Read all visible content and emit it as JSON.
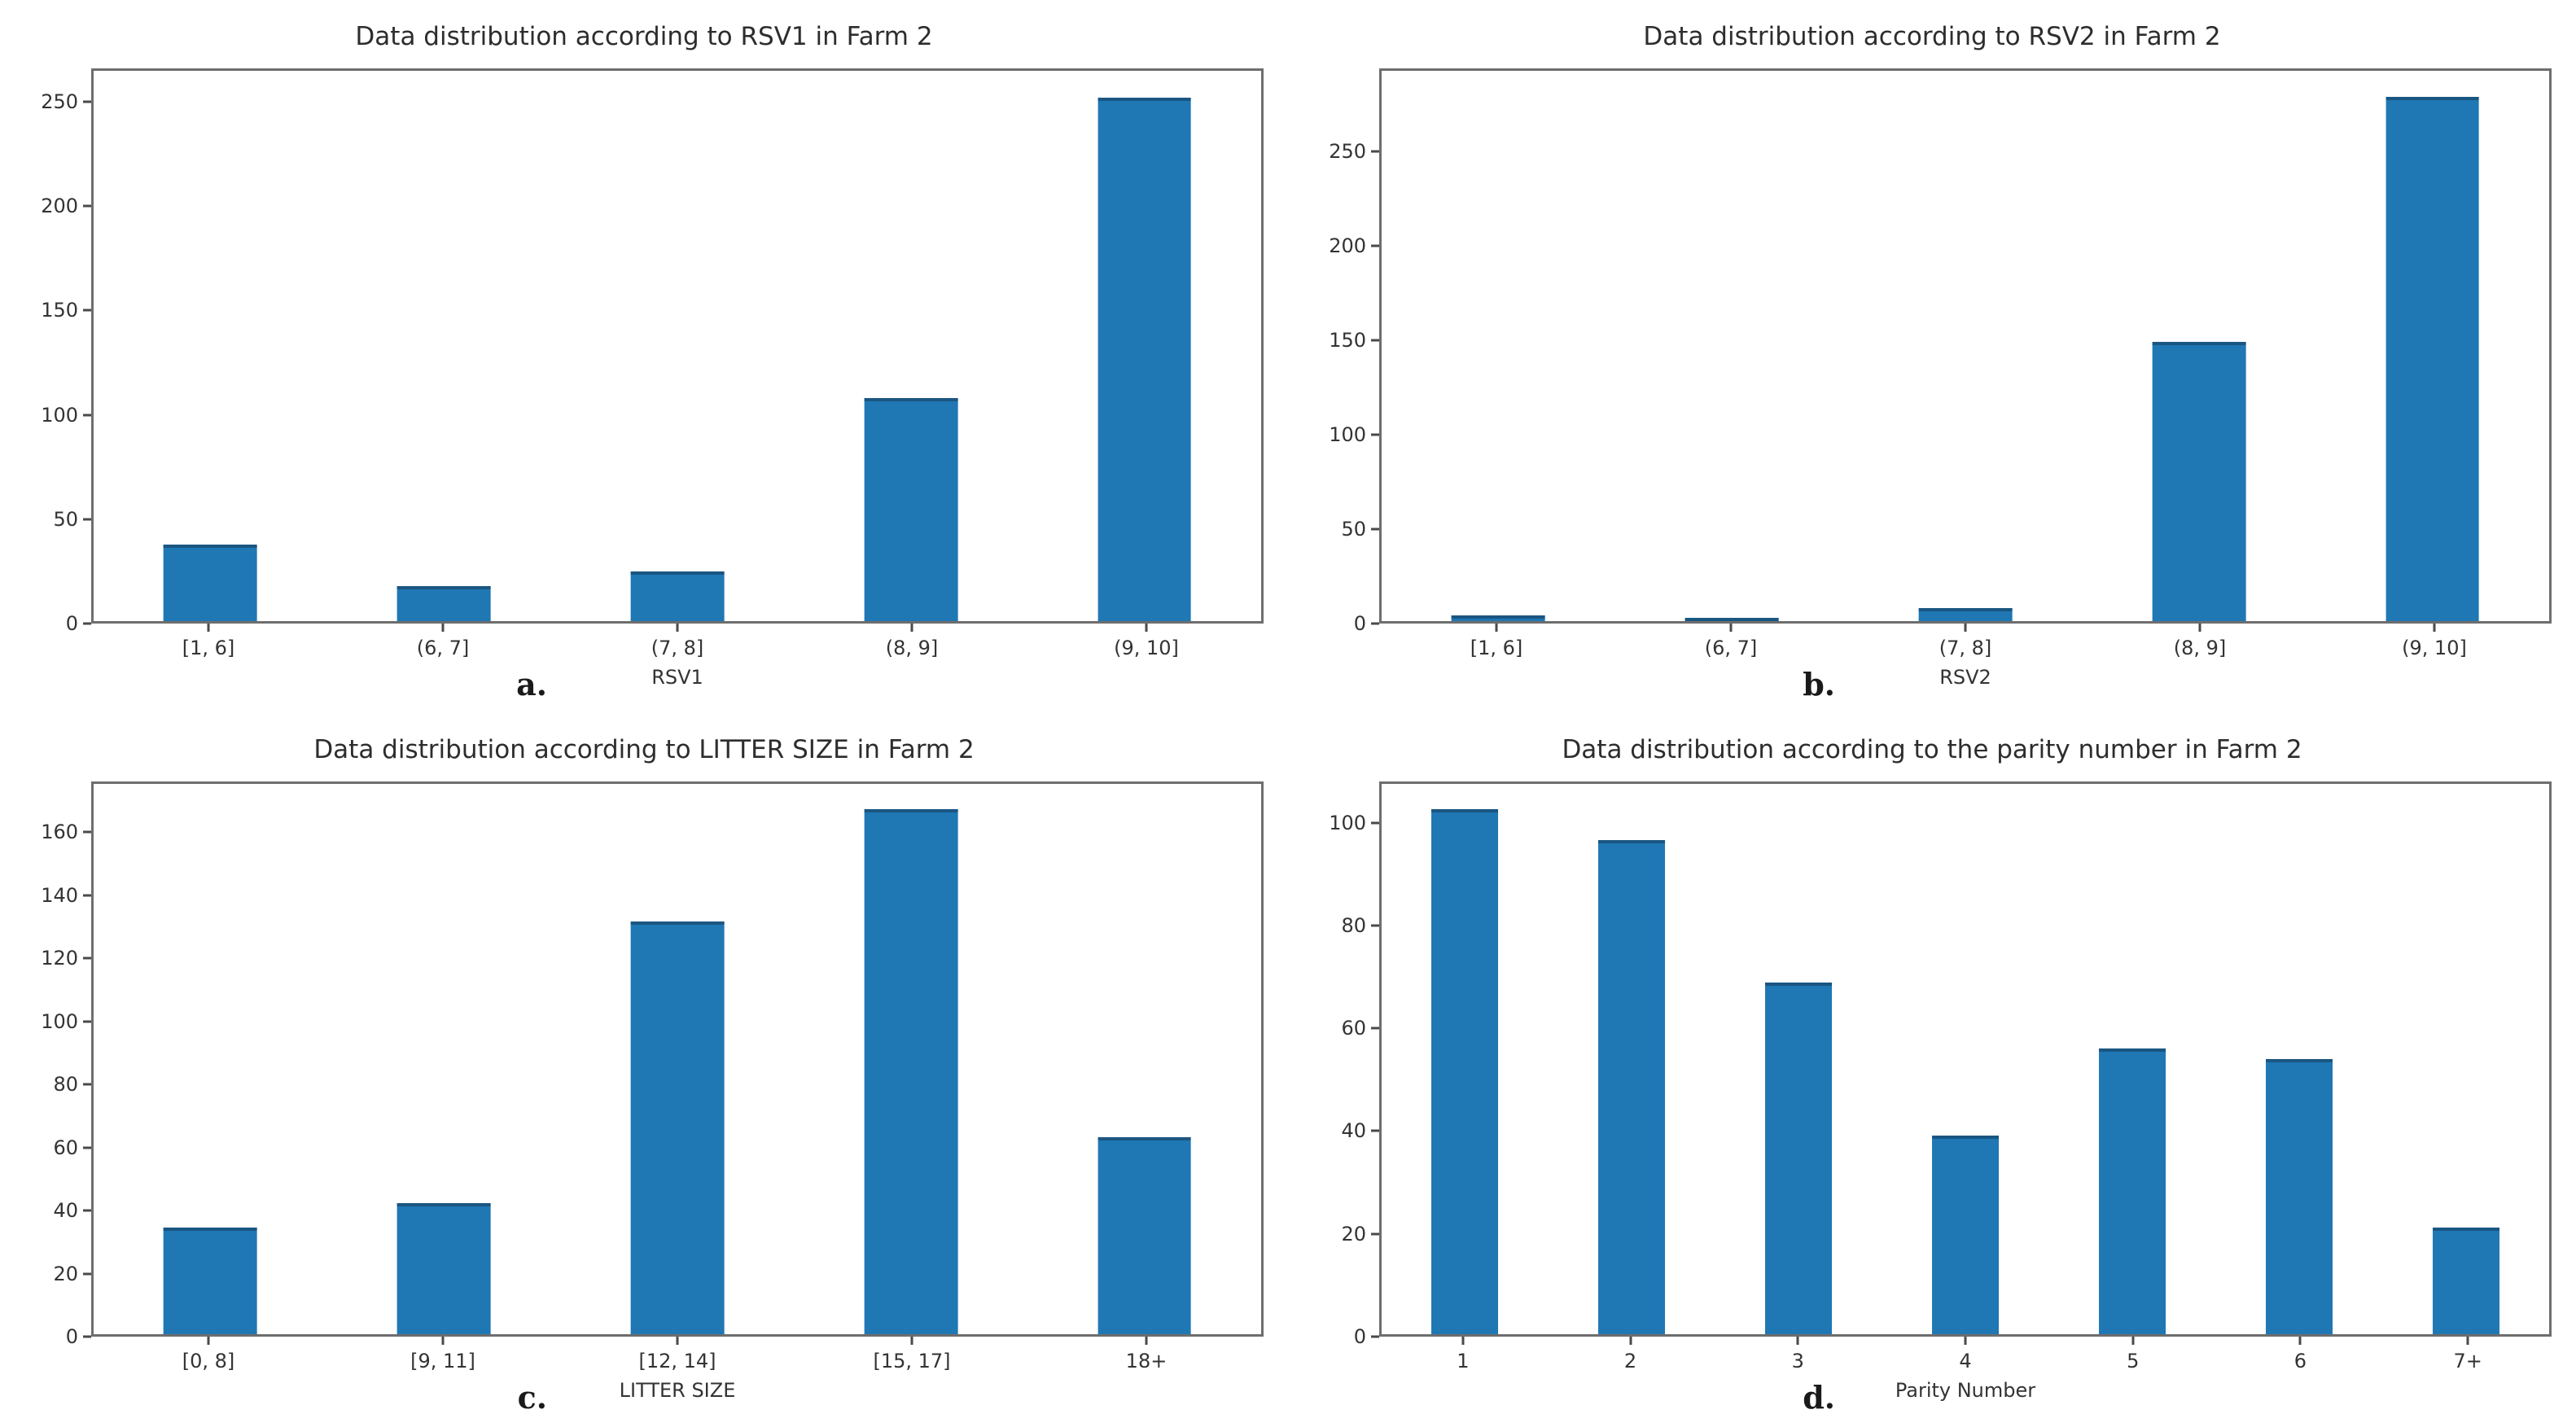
{
  "figure": {
    "background": "#ffffff",
    "bar_color": "#1f77b4",
    "axis_color": "#6e6e6e",
    "text_color": "#333333"
  },
  "chart_data": [
    {
      "type": "bar",
      "panel_label": "a.",
      "title": "Data distribution according to RSV1 in Farm 2",
      "xlabel": "RSV1",
      "ylabel": "",
      "categories": [
        "[1, 6]",
        "(6, 7]",
        "(7, 8]",
        "(8, 9]",
        "(9, 10]"
      ],
      "values": [
        37,
        17,
        24,
        108,
        253
      ],
      "yticks": [
        0,
        50,
        100,
        150,
        200,
        250
      ],
      "ylim": [
        0,
        266
      ],
      "grid": false,
      "legend_position": "none"
    },
    {
      "type": "bar",
      "panel_label": "b.",
      "title": "Data distribution according to RSV2 in Farm 2",
      "xlabel": "RSV2",
      "ylabel": "",
      "categories": [
        "[1, 6]",
        "(6, 7]",
        "(7, 8]",
        "(8, 9]",
        "(9, 10]"
      ],
      "values": [
        3,
        1,
        7,
        149,
        280
      ],
      "yticks": [
        0,
        50,
        100,
        150,
        200,
        250
      ],
      "ylim": [
        0,
        294
      ],
      "grid": false,
      "legend_position": "none"
    },
    {
      "type": "bar",
      "panel_label": "c.",
      "title": "Data distribution according to LITTER SIZE in Farm 2",
      "xlabel": "LITTER SIZE",
      "ylabel": "",
      "categories": [
        "[0, 8]",
        "[9, 11]",
        "[12, 14]",
        "[15, 17]",
        "18+"
      ],
      "values": [
        34,
        42,
        132,
        168,
        63
      ],
      "yticks": [
        0,
        20,
        40,
        60,
        80,
        100,
        120,
        140,
        160
      ],
      "ylim": [
        0,
        176
      ],
      "grid": false,
      "legend_position": "none"
    },
    {
      "type": "bar",
      "panel_label": "d.",
      "title": "Data distribution according to the parity number in Farm 2",
      "xlabel": "Parity Number",
      "ylabel": "",
      "categories": [
        "1",
        "2",
        "3",
        "4",
        "5",
        "6",
        "7+"
      ],
      "values": [
        103,
        97,
        69,
        39,
        56,
        54,
        21
      ],
      "yticks": [
        0,
        20,
        40,
        60,
        80,
        100
      ],
      "ylim": [
        0,
        108
      ],
      "grid": false,
      "legend_position": "none"
    }
  ]
}
